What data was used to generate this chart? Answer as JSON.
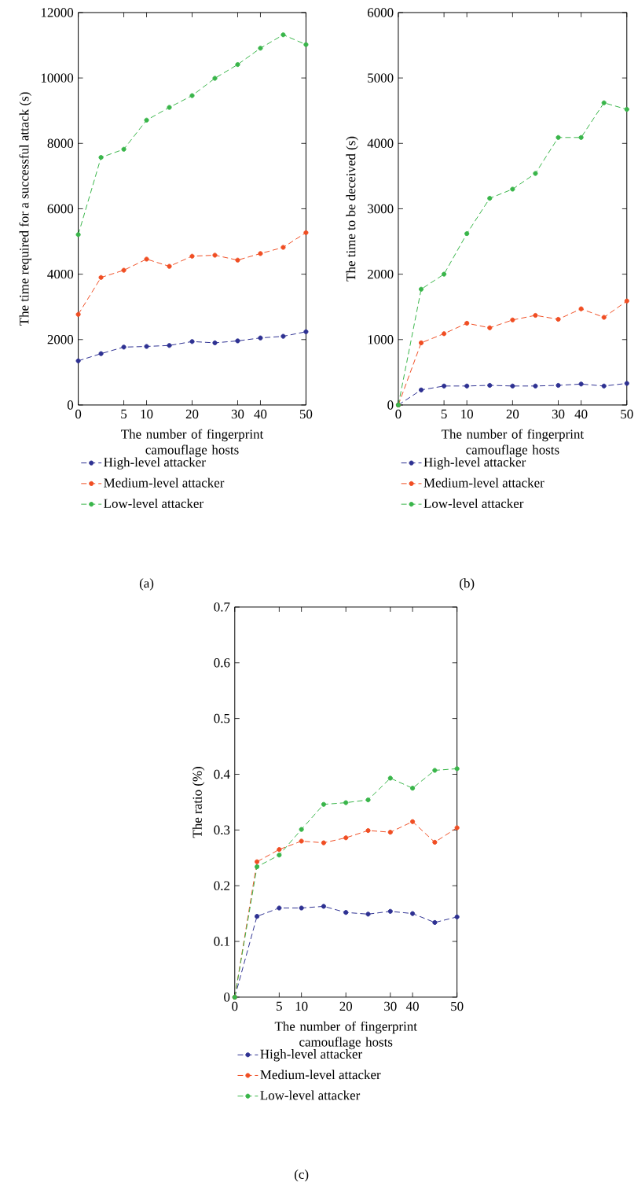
{
  "chart_data": [
    {
      "type": "line",
      "xlabel": "The number of fingerprint camouflage hosts",
      "ylabel": "The time required for a successful attack (s)",
      "categories": [
        "0",
        null,
        "5",
        "10",
        null,
        "20",
        null,
        "30",
        "40",
        null,
        "50"
      ],
      "ylim": [
        0,
        12000
      ],
      "yticks": [
        0,
        2000,
        4000,
        6000,
        8000,
        10000,
        12000
      ],
      "marker": "circle",
      "line_style": "dashed",
      "legend": "bottom",
      "series": [
        {
          "name": "High-level attacker",
          "color": "#2e3192",
          "values": [
            1350,
            1570,
            1770,
            1790,
            1820,
            1940,
            1900,
            1960,
            2050,
            2100,
            2240
          ]
        },
        {
          "name": "Medium-level attacker",
          "color": "#f04e23",
          "values": [
            2770,
            3900,
            4120,
            4460,
            4240,
            4550,
            4580,
            4430,
            4630,
            4820,
            5270
          ]
        },
        {
          "name": "Low-level attacker",
          "color": "#39b54a",
          "values": [
            5210,
            7570,
            7820,
            8710,
            9100,
            9460,
            9990,
            10410,
            10910,
            11320,
            11020
          ]
        }
      ],
      "annotations": [
        "(a)"
      ]
    },
    {
      "type": "line",
      "xlabel": "The number of fingerprint camouflage hosts",
      "ylabel": "The time to be deceived (s)",
      "categories": [
        "0",
        null,
        "5",
        "10",
        null,
        "20",
        null,
        "30",
        "40",
        null,
        "50"
      ],
      "ylim": [
        0,
        6000
      ],
      "yticks": [
        0,
        1000,
        2000,
        3000,
        4000,
        5000,
        6000
      ],
      "marker": "circle",
      "line_style": "dashed",
      "legend": "bottom",
      "series": [
        {
          "name": "High-level attacker",
          "color": "#2e3192",
          "values": [
            0,
            230,
            290,
            290,
            300,
            290,
            290,
            300,
            320,
            290,
            330
          ]
        },
        {
          "name": "Medium-level attacker",
          "color": "#f04e23",
          "values": [
            0,
            950,
            1090,
            1250,
            1180,
            1300,
            1370,
            1310,
            1470,
            1340,
            1590
          ]
        },
        {
          "name": "Low-level attacker",
          "color": "#39b54a",
          "values": [
            0,
            1770,
            2000,
            2620,
            3160,
            3300,
            3540,
            4090,
            4090,
            4620,
            4520
          ]
        }
      ],
      "annotations": [
        "(b)"
      ]
    },
    {
      "type": "line",
      "xlabel": "The number of fingerprint camouflage hosts",
      "ylabel": "The ratio (%)",
      "categories": [
        "0",
        null,
        "5",
        "10",
        null,
        "20",
        null,
        "30",
        "40",
        null,
        "50"
      ],
      "ylim": [
        0,
        0.7
      ],
      "yticks": [
        0,
        0.1,
        0.2,
        0.3,
        0.4,
        0.5,
        0.6,
        0.7
      ],
      "marker": "circle",
      "line_style": "dashed",
      "legend": "bottom",
      "series": [
        {
          "name": "High-level attacker",
          "color": "#2e3192",
          "values": [
            0,
            0.145,
            0.16,
            0.16,
            0.163,
            0.152,
            0.149,
            0.154,
            0.15,
            0.134,
            0.144
          ]
        },
        {
          "name": "Medium-level attacker",
          "color": "#f04e23",
          "values": [
            0,
            0.243,
            0.265,
            0.28,
            0.277,
            0.286,
            0.299,
            0.296,
            0.315,
            0.278,
            0.304
          ]
        },
        {
          "name": "Low-level attacker",
          "color": "#39b54a",
          "values": [
            0,
            0.234,
            0.255,
            0.301,
            0.346,
            0.349,
            0.354,
            0.393,
            0.375,
            0.407,
            0.41
          ]
        }
      ],
      "annotations": [
        "(c)"
      ]
    }
  ]
}
